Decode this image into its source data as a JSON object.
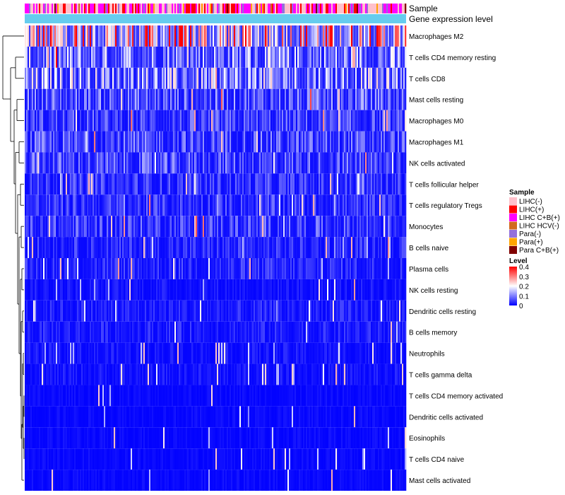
{
  "chart_data": {
    "type": "heatmap",
    "annotation_tracks": [
      "Sample",
      "Gene expression level"
    ],
    "rows": [
      "Macrophages M2",
      "T cells CD4 memory resting",
      "T cells CD8",
      "Mast cells resting",
      "Macrophages M0",
      "Macrophages M1",
      "NK cells activated",
      "T cells follicular helper",
      "T cells regulatory  Tregs",
      "Monocytes",
      "B cells naive",
      "Plasma cells",
      "NK cells resting",
      "Dendritic cells resting",
      "B cells memory",
      "Neutrophils",
      "T cells gamma delta",
      "T cells CD4 memory activated",
      "Dendritic cells activated",
      "Eosinophils",
      "T cells CD4 naive",
      "Mast cells activated"
    ],
    "row_mean_level": [
      0.25,
      0.12,
      0.13,
      0.08,
      0.06,
      0.07,
      0.07,
      0.05,
      0.05,
      0.06,
      0.04,
      0.04,
      0.02,
      0.03,
      0.03,
      0.02,
      0.02,
      0.01,
      0.01,
      0.01,
      0.01,
      0.01
    ],
    "n_samples": 270,
    "legend": {
      "sample_title": "Sample",
      "sample_items": [
        {
          "label": "LIHC(-)",
          "color": "#ffc0cb"
        },
        {
          "label": "LIHC(+)",
          "color": "#ff0000"
        },
        {
          "label": "LIHC C+B(+)",
          "color": "#ff00ff"
        },
        {
          "label": "LIHC HCV(-)",
          "color": "#d2691e"
        },
        {
          "label": "Para(-)",
          "color": "#9370db"
        },
        {
          "label": "Para(+)",
          "color": "#ffa500"
        },
        {
          "label": "Para C+B(+)",
          "color": "#800000"
        }
      ],
      "level_title": "Level",
      "level_ticks": [
        "0.4",
        "0.3",
        "0.2",
        "0.1",
        "0"
      ],
      "level_range": [
        0,
        0.4
      ],
      "level_colors": [
        "#0000ff",
        "#ffffff",
        "#ff0000"
      ]
    },
    "expression_track_color": "#66ccee"
  }
}
